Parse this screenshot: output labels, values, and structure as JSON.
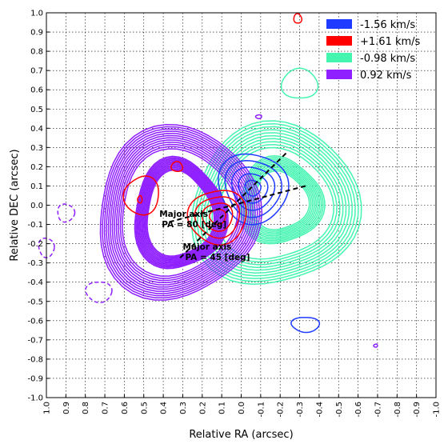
{
  "chart_data": {
    "type": "contour",
    "xlabel": "Relative RA (arcsec)",
    "ylabel": "Relative DEC (arcsec)",
    "xlim": [
      1.0,
      -1.0
    ],
    "ylim": [
      -1.0,
      1.0
    ],
    "x_ticks": [
      1.0,
      0.9,
      0.8,
      0.7,
      0.6,
      0.5,
      0.4,
      0.3,
      0.2,
      0.1,
      0.0,
      -0.1,
      -0.2,
      -0.3,
      -0.4,
      -0.5,
      -0.6,
      -0.7,
      -0.8,
      -0.9,
      -1.0
    ],
    "x_tick_labels": [
      "1.0",
      "0.9",
      "0.8",
      "0.7",
      "0.6",
      "0.5",
      "0.4",
      "0.3",
      "0.2",
      "0.1",
      "0.0",
      "-0.1",
      "-0.2",
      "-0.3",
      "-0.4",
      "-0.5",
      "-0.6",
      "-0.7",
      "-0.8",
      "-0.9",
      "-1.0"
    ],
    "y_ticks": [
      1.0,
      0.9,
      0.8,
      0.7,
      0.6,
      0.5,
      0.4,
      0.3,
      0.2,
      0.1,
      0.0,
      -0.1,
      -0.2,
      -0.3,
      -0.4,
      -0.5,
      -0.6,
      -0.7,
      -0.8,
      -0.9,
      -1.0
    ],
    "y_tick_labels": [
      "1.0",
      "0.9",
      "0.8",
      "0.7",
      "0.6",
      "0.5",
      "0.4",
      "0.3",
      "0.2",
      "0.1",
      "0.0",
      "-0.1",
      "-0.2",
      "-0.3",
      "-0.4",
      "-0.5",
      "-0.6",
      "-0.7",
      "-0.8",
      "-0.9",
      "-1.0"
    ],
    "grid": true,
    "legend_position": "top-right",
    "legend": [
      {
        "label": "-1.56 km/s",
        "color": "#1f3bff"
      },
      {
        "label": "+1.61 km/s",
        "color": "#ff0000"
      },
      {
        "label": "-0.98 km/s",
        "color": "#44f5b0"
      },
      {
        "label": "0.92 km/s",
        "color": "#8f1fff"
      }
    ],
    "series": [
      {
        "velocity": "-0.98 km/s",
        "color": "#44f5b0",
        "contours": [
          {
            "x": -0.3,
            "y": 0.63,
            "rx": 0.09,
            "ry": 0.08,
            "n": 1,
            "step": 0
          },
          {
            "x": -0.17,
            "y": 0.0,
            "rx": 0.29,
            "ry": 0.29,
            "n": 10,
            "step": 0.015,
            "hole": {
              "x": -0.2,
              "y": 0.02,
              "rx": 0.14,
              "ry": 0.15
            }
          }
        ]
      },
      {
        "velocity": "0.92 km/s",
        "color": "#8f1fff",
        "contours": [
          {
            "x": 0.33,
            "y": -0.04,
            "rx": 0.3,
            "ry": 0.32,
            "n": 12,
            "step": 0.011,
            "hole": {
              "x": 0.32,
              "y": -0.05,
              "rx": 0.17,
              "ry": 0.22
            }
          },
          {
            "x": 0.9,
            "y": -0.04,
            "rx": 0.045,
            "ry": 0.045,
            "n": 1,
            "step": 0,
            "dashed": true
          },
          {
            "x": 1.0,
            "y": -0.22,
            "rx": 0.04,
            "ry": 0.05,
            "n": 1,
            "step": 0,
            "dashed": true
          },
          {
            "x": 0.73,
            "y": -0.45,
            "rx": 0.065,
            "ry": 0.055,
            "n": 1,
            "step": 0,
            "dashed": true
          },
          {
            "x": -0.09,
            "y": 0.46,
            "rx": 0.015,
            "ry": 0.01,
            "n": 1,
            "step": 0
          },
          {
            "x": -0.69,
            "y": -0.73,
            "rx": 0.01,
            "ry": 0.008,
            "n": 1,
            "step": 0
          }
        ]
      },
      {
        "velocity": "-1.56 km/s",
        "color": "#1f3bff",
        "contours": [
          {
            "x": -0.06,
            "y": 0.09,
            "rx": 0.04,
            "ry": 0.04,
            "n": 5,
            "step": 0.035
          },
          {
            "x": -0.33,
            "y": -0.62,
            "rx": 0.07,
            "ry": 0.04,
            "n": 1,
            "step": 0
          }
        ]
      },
      {
        "velocity": "+1.61 km/s",
        "color": "#ff0000",
        "contours": [
          {
            "x": 0.12,
            "y": -0.06,
            "rx": 0.04,
            "ry": 0.04,
            "n": 4,
            "step": 0.035
          },
          {
            "x": 0.51,
            "y": 0.05,
            "rx": 0.09,
            "ry": 0.1,
            "n": 1,
            "step": 0
          },
          {
            "x": 0.52,
            "y": 0.03,
            "rx": 0.012,
            "ry": 0.018,
            "n": 1,
            "step": 0
          },
          {
            "x": 0.33,
            "y": 0.2,
            "rx": 0.03,
            "ry": 0.025,
            "n": 1,
            "step": 0
          },
          {
            "x": -0.29,
            "y": 0.97,
            "rx": 0.02,
            "ry": 0.025,
            "n": 1,
            "step": 0
          }
        ]
      }
    ],
    "annotations": [
      {
        "lines": [
          "Major axis",
          "PA = 80 [deg]"
        ],
        "axis": {
          "x1": -0.33,
          "y1": 0.1,
          "x2": 0.38,
          "y2": -0.09
        },
        "text_at": {
          "x": 0.42,
          "y": -0.06
        }
      },
      {
        "lines": [
          "Major axis",
          "PA = 45 [deg]"
        ],
        "axis": {
          "x1": -0.23,
          "y1": 0.27,
          "x2": 0.32,
          "y2": -0.28
        },
        "text_at": {
          "x": 0.3,
          "y": -0.23
        }
      }
    ]
  }
}
